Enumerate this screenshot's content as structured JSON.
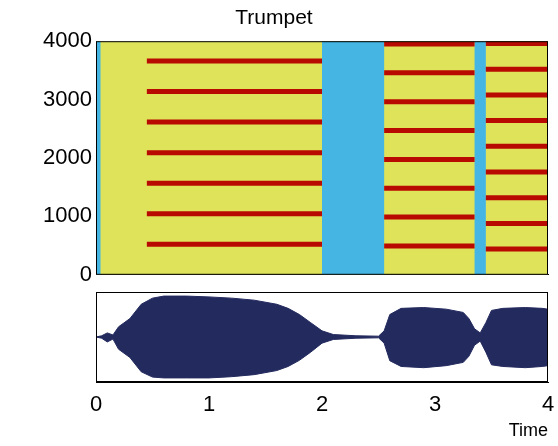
{
  "chart_data": [
    {
      "type": "spectrogram",
      "title": "Trumpet",
      "xlim": [
        0,
        4
      ],
      "ylim": [
        0,
        4000
      ],
      "yticks": [
        0,
        1000,
        2000,
        3000,
        4000
      ],
      "tick_labels": "y",
      "color": "#b80a00",
      "notes": [
        {
          "start": 0.45,
          "end": 2.0,
          "harmonics": [
            523,
            1046,
            1569,
            2092,
            2615,
            3138,
            3661
          ]
        },
        {
          "start": 2.55,
          "end": 3.35,
          "harmonics": [
            494,
            988,
            1482,
            1976,
            2470,
            2964,
            3458,
            3952
          ]
        },
        {
          "start": 3.45,
          "end": 4.0,
          "harmonics": [
            440,
            880,
            1320,
            1760,
            2200,
            2640,
            3080,
            3520,
            3960
          ]
        }
      ],
      "low_energy": [
        [
          0,
          0.04
        ],
        [
          2.0,
          2.55
        ],
        [
          3.35,
          3.45
        ]
      ]
    },
    {
      "type": "waveform",
      "x_label": "Time",
      "xlim": [
        0,
        4
      ],
      "xticks": [
        0,
        1,
        2,
        3,
        4
      ],
      "ylim": [
        -1.1,
        1.1
      ],
      "tick_labels": "x",
      "color": "#232a5e",
      "x": [
        0,
        0.05,
        0.1,
        0.15,
        0.2,
        0.3,
        0.4,
        0.5,
        0.6,
        0.8,
        1.0,
        1.2,
        1.4,
        1.6,
        1.7,
        1.8,
        1.9,
        2.0,
        2.1,
        2.3,
        2.5,
        2.55,
        2.6,
        2.7,
        2.9,
        3.1,
        3.25,
        3.3,
        3.35,
        3.4,
        3.45,
        3.5,
        3.6,
        3.8,
        3.95,
        4.0
      ],
      "upper": [
        0,
        0.03,
        0.1,
        0.05,
        0.25,
        0.45,
        0.8,
        0.95,
        1.0,
        1.0,
        0.98,
        0.95,
        0.9,
        0.8,
        0.7,
        0.55,
        0.35,
        0.15,
        0.06,
        0.03,
        0.02,
        0.15,
        0.55,
        0.7,
        0.72,
        0.68,
        0.6,
        0.45,
        0.2,
        0.1,
        0.35,
        0.65,
        0.7,
        0.72,
        0.7,
        0.68
      ],
      "lower": [
        0,
        -0.03,
        -0.12,
        -0.05,
        -0.3,
        -0.5,
        -0.85,
        -0.98,
        -1.0,
        -1.0,
        -1.0,
        -0.97,
        -0.92,
        -0.82,
        -0.72,
        -0.57,
        -0.37,
        -0.15,
        -0.06,
        -0.03,
        -0.02,
        -0.15,
        -0.58,
        -0.72,
        -0.75,
        -0.7,
        -0.62,
        -0.47,
        -0.2,
        -0.1,
        -0.37,
        -0.68,
        -0.72,
        -0.75,
        -0.72,
        -0.7
      ]
    }
  ]
}
